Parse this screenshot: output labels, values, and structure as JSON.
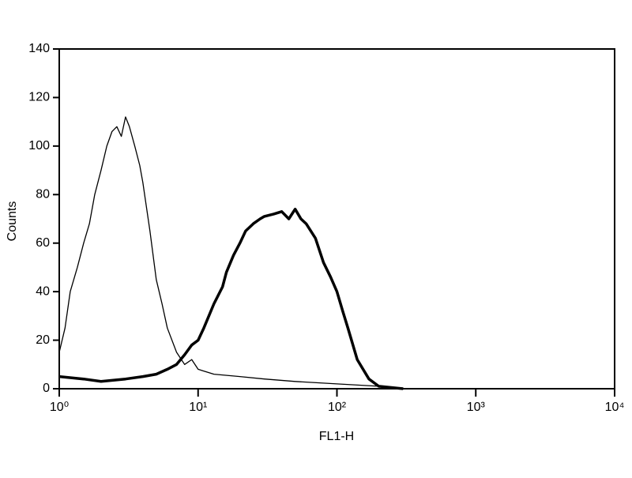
{
  "chart_data": {
    "type": "line",
    "x_label": "FL1-H",
    "y_label": "Counts",
    "log_x": true,
    "xlim": [
      1,
      10000
    ],
    "xticks": [
      {
        "value": 1,
        "label": "10⁰"
      },
      {
        "value": 10,
        "label": "10¹"
      },
      {
        "value": 100,
        "label": "10²"
      },
      {
        "value": 1000,
        "label": "10³"
      },
      {
        "value": 10000,
        "label": "10⁴"
      }
    ],
    "ylim": [
      0,
      140
    ],
    "yticks": [
      0,
      20,
      40,
      60,
      80,
      100,
      120,
      140
    ],
    "series": [
      {
        "color": "#000000",
        "x": [
          1,
          1.1,
          1.2,
          1.35,
          1.5,
          1.65,
          1.8,
          2,
          2.2,
          2.4,
          2.6,
          2.8,
          3,
          3.2,
          3.5,
          3.8,
          4,
          4.5,
          5,
          5.5,
          6,
          7,
          8,
          9,
          10,
          13,
          20,
          30,
          50,
          100,
          200,
          300
        ],
        "values": [
          15,
          25,
          40,
          50,
          60,
          68,
          80,
          90,
          100,
          106,
          108,
          104,
          112,
          108,
          100,
          92,
          85,
          65,
          45,
          35,
          25,
          15,
          10,
          12,
          8,
          6,
          5,
          4,
          3,
          2,
          1,
          0
        ]
      },
      {
        "color": "#000000",
        "x": [
          1,
          1.5,
          2,
          3,
          4,
          5,
          6,
          7,
          8,
          9,
          10,
          11,
          13,
          15,
          16,
          18,
          20,
          22,
          25,
          28,
          30,
          35,
          40,
          45,
          50,
          55,
          60,
          70,
          80,
          90,
          100,
          110,
          120,
          140,
          170,
          200,
          300
        ],
        "values": [
          5,
          4,
          3,
          4,
          5,
          6,
          8,
          10,
          14,
          18,
          20,
          25,
          35,
          42,
          48,
          55,
          60,
          65,
          68,
          70,
          71,
          72,
          73,
          70,
          74,
          70,
          68,
          62,
          52,
          46,
          40,
          32,
          25,
          12,
          4,
          1,
          0
        ]
      }
    ]
  }
}
